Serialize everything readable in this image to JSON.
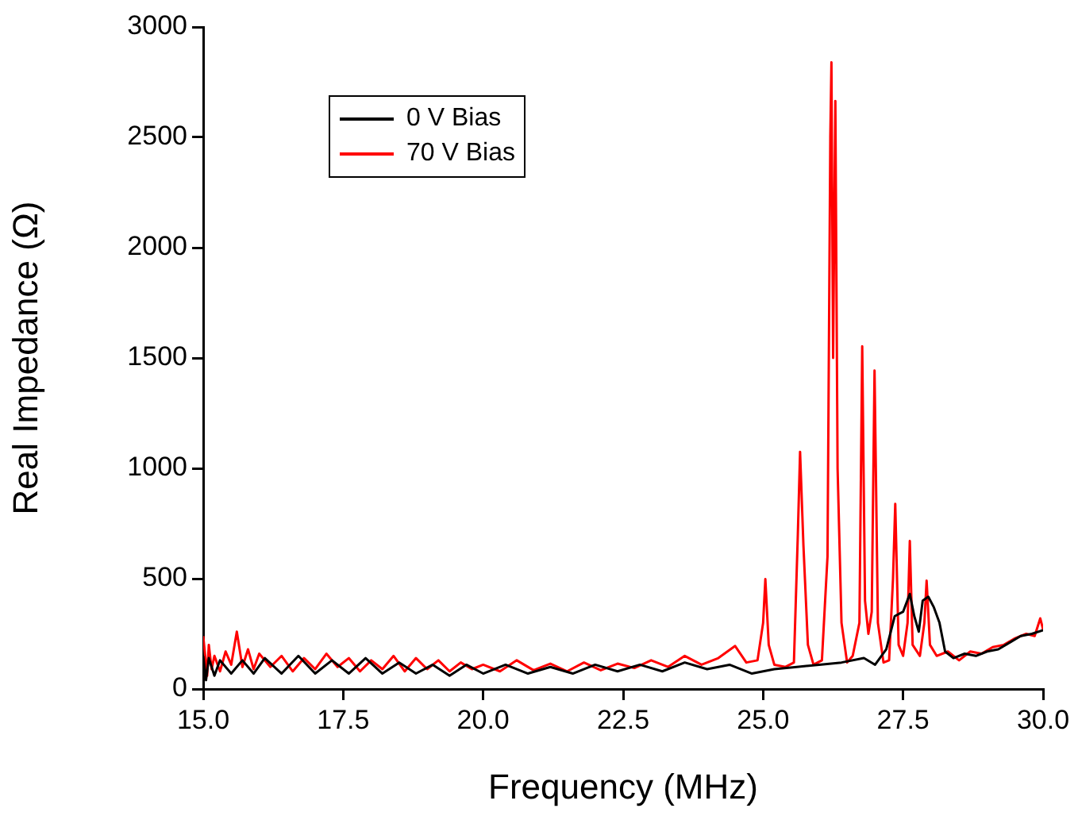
{
  "chart_data": {
    "type": "line",
    "xlabel": "Frequency (MHz)",
    "ylabel": "Real Impedance (Ω)",
    "xlim": [
      15,
      30
    ],
    "xticks": [
      {
        "value": 15,
        "label": "15.0"
      },
      {
        "value": 17.5,
        "label": "17.5"
      },
      {
        "value": 20,
        "label": "20.0"
      },
      {
        "value": 22.5,
        "label": "22.5"
      },
      {
        "value": 25,
        "label": "25.0"
      },
      {
        "value": 27.5,
        "label": "27.5"
      },
      {
        "value": 30,
        "label": "30.0"
      }
    ],
    "ylim": [
      0,
      3000
    ],
    "yticks": [
      0,
      500,
      1000,
      1500,
      2000,
      2500,
      3000
    ],
    "grid": false,
    "legend": "top left",
    "marker": "none",
    "line_style": "solid",
    "series": [
      {
        "name": "0 V Bias",
        "color": "#000000",
        "x": [
          15.0,
          15.05,
          15.1,
          15.2,
          15.3,
          15.5,
          15.7,
          15.9,
          16.1,
          16.4,
          16.7,
          17.0,
          17.3,
          17.6,
          17.9,
          18.2,
          18.5,
          18.8,
          19.1,
          19.4,
          19.7,
          20.0,
          20.4,
          20.8,
          21.2,
          21.6,
          22.0,
          22.4,
          22.8,
          23.2,
          23.6,
          24.0,
          24.4,
          24.8,
          25.2,
          25.6,
          26.0,
          26.4,
          26.8,
          27.0,
          27.2,
          27.35,
          27.5,
          27.62,
          27.7,
          27.78,
          27.85,
          27.95,
          28.05,
          28.15,
          28.25,
          28.4,
          28.6,
          28.8,
          29.0,
          29.2,
          29.4,
          29.6,
          29.8,
          30.0
        ],
        "values": [
          150,
          40,
          140,
          60,
          130,
          70,
          130,
          70,
          140,
          70,
          150,
          70,
          130,
          70,
          140,
          70,
          120,
          70,
          110,
          60,
          110,
          70,
          110,
          70,
          100,
          70,
          110,
          80,
          110,
          80,
          120,
          90,
          110,
          70,
          90,
          100,
          110,
          120,
          140,
          110,
          180,
          330,
          350,
          431,
          330,
          260,
          400,
          418,
          370,
          300,
          170,
          140,
          160,
          150,
          170,
          180,
          210,
          240,
          250,
          266
        ]
      },
      {
        "name": "70 V Bias",
        "color": "#ff0000",
        "x": [
          15.0,
          15.07,
          15.1,
          15.15,
          15.2,
          15.3,
          15.4,
          15.5,
          15.6,
          15.7,
          15.8,
          15.9,
          16.0,
          16.2,
          16.4,
          16.6,
          16.8,
          17.0,
          17.2,
          17.4,
          17.6,
          17.8,
          18.0,
          18.2,
          18.4,
          18.6,
          18.8,
          19.0,
          19.2,
          19.4,
          19.6,
          19.8,
          20.0,
          20.3,
          20.6,
          20.9,
          21.2,
          21.5,
          21.8,
          22.1,
          22.4,
          22.7,
          23.0,
          23.3,
          23.6,
          23.9,
          24.2,
          24.5,
          24.7,
          24.9,
          25.0,
          25.04,
          25.1,
          25.2,
          25.4,
          25.55,
          25.62,
          25.66,
          25.72,
          25.8,
          25.9,
          26.05,
          26.15,
          26.2,
          26.22,
          26.25,
          26.29,
          26.33,
          26.4,
          26.5,
          26.6,
          26.72,
          26.77,
          26.82,
          26.88,
          26.94,
          26.99,
          27.05,
          27.15,
          27.25,
          27.32,
          27.36,
          27.42,
          27.5,
          27.58,
          27.62,
          27.67,
          27.8,
          27.88,
          27.92,
          27.98,
          28.1,
          28.3,
          28.5,
          28.7,
          28.9,
          29.1,
          29.3,
          29.5,
          29.7,
          29.85,
          29.95,
          30.0
        ],
        "values": [
          240,
          60,
          200,
          90,
          150,
          80,
          170,
          110,
          260,
          100,
          180,
          90,
          160,
          100,
          150,
          80,
          140,
          90,
          160,
          100,
          140,
          80,
          130,
          90,
          150,
          80,
          140,
          90,
          130,
          80,
          120,
          90,
          110,
          80,
          130,
          85,
          115,
          80,
          120,
          85,
          115,
          95,
          130,
          100,
          150,
          110,
          140,
          195,
          120,
          130,
          300,
          498,
          200,
          110,
          100,
          120,
          700,
          1075,
          650,
          200,
          110,
          130,
          600,
          2500,
          2840,
          1500,
          2665,
          1000,
          300,
          120,
          150,
          300,
          1553,
          400,
          250,
          350,
          1443,
          300,
          120,
          130,
          500,
          839,
          200,
          150,
          300,
          671,
          200,
          150,
          300,
          491,
          200,
          150,
          170,
          130,
          170,
          160,
          190,
          200,
          230,
          250,
          240,
          320,
          270
        ]
      }
    ]
  }
}
